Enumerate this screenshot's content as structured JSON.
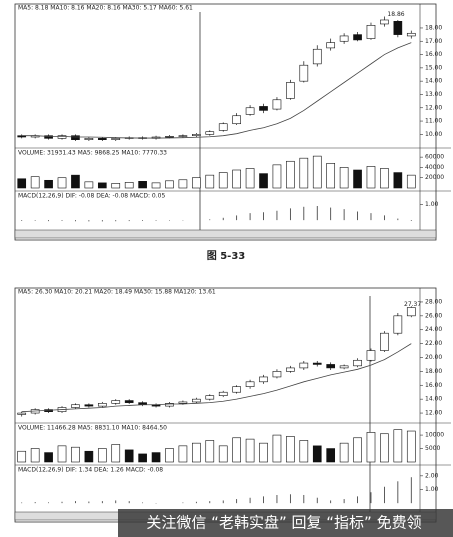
{
  "figure_caption": "图 5-33",
  "watermark": "关注微信 “老韩实盘” 回复 “指标” 免费领",
  "chart_data": [
    {
      "type": "candlestick",
      "title": "MA5: 8.18 MA10: 8.16 MA20: 8.16 MA30: 5.17 MA60: 5.61",
      "up_color": "#ffffff",
      "down_color": "#111111",
      "open": [
        9.9,
        9.8,
        9.9,
        9.7,
        9.9,
        9.6,
        9.7,
        9.6,
        9.7,
        9.75,
        9.7,
        9.8,
        9.85,
        9.9,
        10.0,
        10.3,
        10.8,
        11.5,
        12.1,
        11.9,
        12.7,
        14.0,
        15.3,
        16.5,
        17.0,
        17.5,
        17.2,
        18.3,
        18.5,
        17.4
      ],
      "high": [
        10.0,
        10.0,
        10.0,
        10.0,
        10.0,
        9.8,
        9.8,
        9.8,
        9.85,
        9.85,
        9.9,
        9.95,
        10.0,
        10.1,
        10.3,
        10.9,
        11.6,
        12.2,
        12.3,
        12.8,
        14.1,
        15.5,
        16.7,
        17.2,
        17.6,
        17.7,
        18.4,
        18.86,
        18.6,
        17.8
      ],
      "low": [
        9.7,
        9.7,
        9.6,
        9.6,
        9.5,
        9.5,
        9.5,
        9.5,
        9.6,
        9.6,
        9.6,
        9.7,
        9.75,
        9.8,
        9.9,
        10.2,
        10.7,
        11.4,
        11.6,
        11.8,
        12.6,
        13.9,
        15.1,
        16.3,
        16.8,
        17.0,
        17.1,
        18.1,
        17.3,
        17.2
      ],
      "close": [
        9.8,
        9.9,
        9.7,
        9.9,
        9.6,
        9.7,
        9.6,
        9.7,
        9.75,
        9.7,
        9.8,
        9.85,
        9.9,
        10.0,
        10.2,
        10.8,
        11.4,
        12.0,
        11.8,
        12.6,
        13.9,
        15.2,
        16.4,
        16.9,
        17.4,
        17.1,
        18.2,
        18.6,
        17.5,
        17.6
      ],
      "ma": [
        9.9,
        9.9,
        9.85,
        9.85,
        9.8,
        9.8,
        9.78,
        9.75,
        9.73,
        9.72,
        9.72,
        9.73,
        9.75,
        9.78,
        9.82,
        9.9,
        10.05,
        10.3,
        10.5,
        10.8,
        11.2,
        11.8,
        12.5,
        13.2,
        13.9,
        14.6,
        15.3,
        16.0,
        16.5,
        16.9
      ],
      "ylim": [
        9.2,
        19.2
      ],
      "yticks": [
        {
          "value": 10,
          "label": "10.00"
        },
        {
          "value": 11,
          "label": "11.00"
        },
        {
          "value": 12,
          "label": "12.00"
        },
        {
          "value": 13,
          "label": "13.00"
        },
        {
          "value": 14,
          "label": "14.00"
        },
        {
          "value": 15,
          "label": "15.00"
        },
        {
          "value": 16,
          "label": "16.00"
        },
        {
          "value": 17,
          "label": "17.00"
        },
        {
          "value": 18,
          "label": "18.00"
        }
      ],
      "annotation": "18.86",
      "volume_title": "VOLUME: 31931.43 MA5: 9868.25 MA10: 7770.33",
      "volume": [
        18000,
        22000,
        15000,
        20000,
        25000,
        12000,
        10000,
        9000,
        11000,
        13000,
        10000,
        14000,
        16000,
        20000,
        25000,
        30000,
        35000,
        38000,
        28000,
        45000,
        52000,
        58000,
        62000,
        48000,
        40000,
        35000,
        42000,
        38000,
        30000,
        25000
      ],
      "volume_ylim": [
        0,
        70000
      ],
      "volume_yticks": [
        20000,
        40000,
        60000
      ],
      "macd_title": "MACD(12,26,9) DIF: -0.08 DEA: -0.08 MACD: 0.05",
      "macd": [
        -0.05,
        -0.04,
        -0.06,
        -0.05,
        -0.07,
        -0.08,
        -0.08,
        -0.07,
        -0.06,
        -0.05,
        -0.04,
        -0.03,
        -0.02,
        0.0,
        0.05,
        0.15,
        0.3,
        0.45,
        0.5,
        0.6,
        0.75,
        0.85,
        0.9,
        0.8,
        0.7,
        0.55,
        0.45,
        0.3,
        0.1,
        -0.05
      ],
      "macd_ylim": [
        -0.5,
        1.6
      ],
      "macd_yticks": [
        {
          "value": 1,
          "label": "1.00"
        }
      ]
    },
    {
      "type": "candlestick",
      "title": "MA5: 26.30 MA10: 20.21 MA20: 18.49 MA30: 15.88 MA120: 13.61",
      "up_color": "#ffffff",
      "down_color": "#111111",
      "open": [
        11.8,
        12.0,
        12.5,
        12.2,
        12.8,
        13.2,
        13.0,
        13.4,
        13.8,
        13.5,
        13.2,
        13.0,
        13.4,
        13.6,
        14.0,
        14.5,
        15.0,
        15.8,
        16.5,
        17.2,
        18.0,
        18.5,
        19.2,
        19.0,
        18.5,
        18.8,
        19.6,
        21.0,
        23.5,
        26.0
      ],
      "high": [
        12.2,
        12.7,
        12.7,
        13.0,
        13.4,
        13.4,
        13.6,
        14.0,
        14.0,
        13.7,
        13.4,
        13.6,
        13.8,
        14.2,
        14.7,
        15.2,
        16.0,
        16.8,
        17.5,
        18.3,
        18.8,
        19.5,
        19.5,
        19.3,
        19.0,
        19.9,
        21.3,
        23.8,
        26.4,
        27.37
      ],
      "low": [
        11.5,
        11.8,
        12.0,
        12.0,
        12.6,
        12.8,
        12.8,
        13.2,
        13.3,
        13.0,
        12.8,
        12.8,
        13.2,
        13.4,
        13.8,
        14.3,
        14.8,
        15.5,
        16.2,
        17.0,
        17.8,
        18.2,
        18.7,
        18.2,
        18.3,
        18.6,
        19.4,
        20.8,
        23.2,
        25.8
      ],
      "close": [
        12.0,
        12.5,
        12.2,
        12.8,
        13.2,
        13.0,
        13.4,
        13.8,
        13.5,
        13.2,
        13.0,
        13.4,
        13.6,
        14.0,
        14.5,
        15.0,
        15.8,
        16.5,
        17.2,
        18.0,
        18.5,
        19.2,
        19.0,
        18.5,
        18.8,
        19.6,
        21.0,
        23.5,
        26.0,
        27.2
      ],
      "ma": [
        12.2,
        12.3,
        12.4,
        12.5,
        12.6,
        12.7,
        12.8,
        13.0,
        13.1,
        13.2,
        13.2,
        13.3,
        13.3,
        13.4,
        13.5,
        13.7,
        14.0,
        14.4,
        14.8,
        15.3,
        15.9,
        16.5,
        17.0,
        17.5,
        17.9,
        18.3,
        18.9,
        19.7,
        20.8,
        22.0
      ],
      "ylim": [
        11,
        29
      ],
      "yticks": [
        {
          "value": 12,
          "label": "12.00"
        },
        {
          "value": 14,
          "label": "14.00"
        },
        {
          "value": 16,
          "label": "16.00"
        },
        {
          "value": 18,
          "label": "18.00"
        },
        {
          "value": 20,
          "label": "20.00"
        },
        {
          "value": 22,
          "label": "22.00"
        },
        {
          "value": 24,
          "label": "24.00"
        },
        {
          "value": 26,
          "label": "26.00"
        },
        {
          "value": 28,
          "label": "28.00"
        }
      ],
      "annotation": "27.37",
      "volume_title": "VOLUME: 11466.28 MA5: 8831.10 MA10: 8464.50",
      "volume": [
        4000,
        5000,
        3500,
        6000,
        5500,
        4000,
        5000,
        6500,
        4500,
        3000,
        3500,
        5000,
        6000,
        7000,
        8000,
        6000,
        9000,
        8500,
        7000,
        10000,
        9500,
        8000,
        6000,
        5000,
        7000,
        9000,
        11000,
        10500,
        12000,
        11500
      ],
      "volume_ylim": [
        0,
        13000
      ],
      "volume_yticks": [
        5000,
        10000
      ],
      "macd_title": "MACD(12,26,9) DIF: 1.34 DEA: 1.26 MACD: -0.08",
      "macd": [
        0.05,
        0.08,
        0.06,
        0.1,
        0.15,
        0.12,
        0.15,
        0.2,
        0.15,
        0.05,
        -0.02,
        0.0,
        0.05,
        0.1,
        0.15,
        0.2,
        0.3,
        0.4,
        0.5,
        0.6,
        0.65,
        0.6,
        0.4,
        0.2,
        0.3,
        0.5,
        0.8,
        1.2,
        1.6,
        1.9
      ],
      "macd_ylim": [
        -0.5,
        2.5
      ],
      "macd_yticks": [
        {
          "value": 1,
          "label": "1.00"
        },
        {
          "value": 2,
          "label": "2.00"
        }
      ]
    }
  ]
}
